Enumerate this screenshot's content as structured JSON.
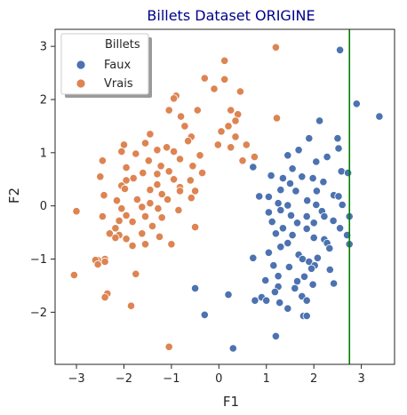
{
  "chart_data": {
    "type": "scatter",
    "title": "Billets Dataset ORIGINE",
    "title_color": "#00008b",
    "xlabel": "F1",
    "ylabel": "F2",
    "xlim": [
      -3.45,
      3.7
    ],
    "ylim": [
      -2.98,
      3.32
    ],
    "xticks": [
      -3,
      -2,
      -1,
      0,
      1,
      2,
      3
    ],
    "yticks": [
      -2,
      -1,
      0,
      1,
      2,
      3
    ],
    "grid": false,
    "legend": {
      "title": "Billets",
      "position": "top-left"
    },
    "vline": {
      "x": 2.75,
      "color": "#008000"
    },
    "series": [
      {
        "name": "Faux",
        "color": "#4c72b0",
        "points": [
          [
            2.55,
            2.93
          ],
          [
            2.9,
            1.92
          ],
          [
            3.38,
            1.68
          ],
          [
            2.12,
            1.6
          ],
          [
            2.5,
            1.27
          ],
          [
            1.9,
            1.27
          ],
          [
            2.52,
            1.08
          ],
          [
            1.68,
            1.05
          ],
          [
            2.28,
            0.92
          ],
          [
            1.45,
            0.95
          ],
          [
            2.05,
            0.83
          ],
          [
            1.55,
            0.7
          ],
          [
            0.72,
            0.73
          ],
          [
            2.58,
            0.65
          ],
          [
            2.72,
            0.62
          ],
          [
            1.1,
            0.57
          ],
          [
            1.75,
            0.55
          ],
          [
            1.35,
            0.52
          ],
          [
            1.98,
            0.52
          ],
          [
            2.2,
            0.45
          ],
          [
            1.5,
            0.42
          ],
          [
            1.3,
            0.3
          ],
          [
            1.62,
            0.28
          ],
          [
            2.06,
            0.28
          ],
          [
            0.85,
            0.18
          ],
          [
            1.05,
            0.17
          ],
          [
            2.42,
            0.2
          ],
          [
            2.52,
            0.18
          ],
          [
            1.86,
            0.1
          ],
          [
            1.25,
            0.05
          ],
          [
            2.6,
            0.02
          ],
          [
            1.45,
            0.01
          ],
          [
            2.05,
            0.02
          ],
          [
            1.3,
            -0.08
          ],
          [
            1.05,
            -0.12
          ],
          [
            2.17,
            -0.1
          ],
          [
            1.52,
            -0.18
          ],
          [
            1.85,
            -0.2
          ],
          [
            2.22,
            -0.2
          ],
          [
            2.75,
            -0.2
          ],
          [
            1.12,
            -0.3
          ],
          [
            1.65,
            -0.32
          ],
          [
            2.0,
            -0.32
          ],
          [
            2.41,
            -0.28
          ],
          [
            1.35,
            -0.42
          ],
          [
            1.85,
            -0.43
          ],
          [
            2.55,
            -0.42
          ],
          [
            1.2,
            -0.52
          ],
          [
            1.55,
            -0.55
          ],
          [
            2.0,
            -0.6
          ],
          [
            2.22,
            -0.63
          ],
          [
            2.7,
            -0.55
          ],
          [
            2.28,
            -0.7
          ],
          [
            1.45,
            -0.7
          ],
          [
            2.33,
            -0.8
          ],
          [
            1.3,
            -0.77
          ],
          [
            2.75,
            -0.72
          ],
          [
            1.05,
            -0.88
          ],
          [
            1.68,
            -0.92
          ],
          [
            2.08,
            -0.98
          ],
          [
            0.72,
            -0.98
          ],
          [
            1.76,
            -1.0
          ],
          [
            1.9,
            -1.05
          ],
          [
            1.15,
            -1.12
          ],
          [
            2.02,
            -1.12
          ],
          [
            1.48,
            -1.15
          ],
          [
            1.95,
            -1.18
          ],
          [
            2.34,
            -1.2
          ],
          [
            1.25,
            -1.32
          ],
          [
            1.8,
            -1.33
          ],
          [
            0.98,
            -1.4
          ],
          [
            1.65,
            -1.42
          ],
          [
            1.98,
            -1.48
          ],
          [
            2.42,
            -1.46
          ],
          [
            1.25,
            -1.52
          ],
          [
            1.6,
            -1.55
          ],
          [
            1.18,
            -1.62
          ],
          [
            1.75,
            -1.7
          ],
          [
            -0.5,
            -1.55
          ],
          [
            0.2,
            -1.67
          ],
          [
            0.9,
            -1.72
          ],
          [
            0.76,
            -1.78
          ],
          [
            1.0,
            -1.78
          ],
          [
            1.28,
            -1.82
          ],
          [
            1.85,
            -1.78
          ],
          [
            1.45,
            -1.93
          ],
          [
            1.78,
            -2.07
          ],
          [
            1.85,
            -2.07
          ],
          [
            -0.3,
            -2.05
          ],
          [
            1.2,
            -2.45
          ],
          [
            0.3,
            -2.68
          ]
        ]
      },
      {
        "name": "Vrais",
        "color": "#dd8452",
        "points": [
          [
            1.2,
            2.98
          ],
          [
            0.12,
            2.73
          ],
          [
            -0.3,
            2.4
          ],
          [
            0.12,
            2.38
          ],
          [
            -0.1,
            2.2
          ],
          [
            0.45,
            2.15
          ],
          [
            -0.9,
            2.07
          ],
          [
            -0.95,
            2.02
          ],
          [
            -0.45,
            1.8
          ],
          [
            -1.05,
            1.8
          ],
          [
            0.25,
            1.8
          ],
          [
            0.4,
            1.72
          ],
          [
            -0.8,
            1.68
          ],
          [
            0.35,
            1.6
          ],
          [
            1.22,
            1.65
          ],
          [
            -0.72,
            1.5
          ],
          [
            0.2,
            1.5
          ],
          [
            0.05,
            1.4
          ],
          [
            -1.45,
            1.35
          ],
          [
            -0.58,
            1.3
          ],
          [
            0.35,
            1.3
          ],
          [
            -0.65,
            1.22
          ],
          [
            -1.55,
            1.18
          ],
          [
            -2.0,
            1.15
          ],
          [
            -0.02,
            1.15
          ],
          [
            0.58,
            1.15
          ],
          [
            -1.1,
            1.1
          ],
          [
            0.25,
            1.1
          ],
          [
            -2.05,
            1.02
          ],
          [
            -1.3,
            1.05
          ],
          [
            -0.95,
            1.02
          ],
          [
            -1.75,
            0.98
          ],
          [
            -0.4,
            0.95
          ],
          [
            0.75,
            0.92
          ],
          [
            0.5,
            0.85
          ],
          [
            -2.45,
            0.85
          ],
          [
            -1.48,
            0.85
          ],
          [
            -0.82,
            0.88
          ],
          [
            -1.95,
            0.72
          ],
          [
            -1.22,
            0.75
          ],
          [
            -0.55,
            0.75
          ],
          [
            -1.6,
            0.62
          ],
          [
            -0.35,
            0.62
          ],
          [
            -1.3,
            0.6
          ],
          [
            -1.05,
            0.65
          ],
          [
            -2.5,
            0.55
          ],
          [
            -1.8,
            0.52
          ],
          [
            -0.95,
            0.5
          ],
          [
            -0.6,
            0.48
          ],
          [
            -1.95,
            0.48
          ],
          [
            -0.82,
            0.35
          ],
          [
            -1.3,
            0.4
          ],
          [
            -2.05,
            0.38
          ],
          [
            -1.98,
            0.32
          ],
          [
            -1.45,
            0.3
          ],
          [
            -0.5,
            0.28
          ],
          [
            -0.82,
            0.28
          ],
          [
            -2.42,
            0.2
          ],
          [
            -1.2,
            0.22
          ],
          [
            -1.72,
            0.12
          ],
          [
            -0.58,
            0.15
          ],
          [
            -1.08,
            0.12
          ],
          [
            -2.15,
            0.1
          ],
          [
            -1.45,
            0.05
          ],
          [
            -2.05,
            -0.05
          ],
          [
            -1.62,
            -0.02
          ],
          [
            -1.28,
            -0.05
          ],
          [
            -3.0,
            -0.1
          ],
          [
            -0.85,
            -0.08
          ],
          [
            -1.95,
            -0.18
          ],
          [
            -1.55,
            -0.2
          ],
          [
            -2.45,
            -0.2
          ],
          [
            -1.2,
            -0.22
          ],
          [
            -2.1,
            -0.28
          ],
          [
            -1.82,
            -0.3
          ],
          [
            -1.4,
            -0.38
          ],
          [
            -2.18,
            -0.42
          ],
          [
            -0.5,
            -0.4
          ],
          [
            -2.3,
            -0.52
          ],
          [
            -1.62,
            -0.52
          ],
          [
            -2.1,
            -0.55
          ],
          [
            -1.25,
            -0.58
          ],
          [
            -1.95,
            -0.62
          ],
          [
            -2.18,
            -0.6
          ],
          [
            -1.55,
            -0.72
          ],
          [
            -1.82,
            -0.75
          ],
          [
            -1.0,
            -0.72
          ],
          [
            -2.55,
            -1.02
          ],
          [
            -2.6,
            -1.02
          ],
          [
            -2.4,
            -1.0
          ],
          [
            -2.4,
            -1.05
          ],
          [
            -2.55,
            -1.1
          ],
          [
            -1.75,
            -1.28
          ],
          [
            -3.05,
            -1.3
          ],
          [
            -2.35,
            -1.65
          ],
          [
            -2.4,
            -1.72
          ],
          [
            -1.85,
            -1.88
          ],
          [
            -1.05,
            -2.65
          ]
        ]
      }
    ]
  }
}
